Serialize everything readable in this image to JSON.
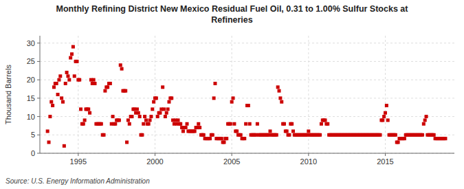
{
  "chart_data": {
    "type": "scatter",
    "title": "Monthly Refining District New Mexico Residual Fuel Oil, 0.31 to 1.00% Sulfur Stocks at\nRefineries",
    "y_label": "Thousand Barrels",
    "source": "Source: U.S. Energy Information Administration",
    "color": "#cc0000",
    "marker": "square",
    "grid": true,
    "xlim": [
      1992.5,
      2019.5
    ],
    "xticks": [
      1995,
      2000,
      2005,
      2010,
      2015
    ],
    "ylim": [
      0,
      32
    ],
    "yticks": [
      0,
      5,
      10,
      15,
      20,
      25,
      30
    ],
    "x": [
      1993,
      1993.0833333333,
      1993.1666666667,
      1993.25,
      1993.3333333333,
      1993.4166666667,
      1993.5,
      1993.5833333333,
      1993.6666666667,
      1993.75,
      1993.8333333333,
      1993.9166666667,
      1994,
      1994.0833333333,
      1994.1666666667,
      1994.25,
      1994.3333333333,
      1994.4166666667,
      1994.5,
      1994.5833333333,
      1994.6666666667,
      1994.75,
      1994.8333333333,
      1994.9166666667,
      1995,
      1995.0833333333,
      1995.1666666667,
      1995.25,
      1995.3333333333,
      1995.4166666667,
      1995.5,
      1995.5833333333,
      1995.6666666667,
      1995.75,
      1995.8333333333,
      1995.9166666667,
      1996,
      1996.0833333333,
      1996.1666666667,
      1996.25,
      1996.3333333333,
      1996.4166666667,
      1996.5,
      1996.5833333333,
      1996.6666666667,
      1996.75,
      1996.8333333333,
      1996.9166666667,
      1997,
      1997.0833333333,
      1997.1666666667,
      1997.25,
      1997.3333333333,
      1997.4166666667,
      1997.5,
      1997.5833333333,
      1997.6666666667,
      1997.75,
      1997.8333333333,
      1997.9166666667,
      1998,
      1998.0833333333,
      1998.1666666667,
      1998.25,
      1998.3333333333,
      1998.4166666667,
      1998.5,
      1998.5833333333,
      1998.6666666667,
      1998.75,
      1998.8333333333,
      1998.9166666667,
      1999,
      1999.0833333333,
      1999.1666666667,
      1999.25,
      1999.3333333333,
      1999.4166666667,
      1999.5,
      1999.5833333333,
      1999.6666666667,
      1999.75,
      1999.8333333333,
      1999.9166666667,
      2000,
      2000.0833333333,
      2000.1666666667,
      2000.25,
      2000.3333333333,
      2000.4166666667,
      2000.5,
      2000.5833333333,
      2000.6666666667,
      2000.75,
      2000.8333333333,
      2000.9166666667,
      2001,
      2001.0833333333,
      2001.1666666667,
      2001.25,
      2001.3333333333,
      2001.4166666667,
      2001.5,
      2001.5833333333,
      2001.6666666667,
      2001.75,
      2001.8333333333,
      2001.9166666667,
      2002,
      2002.0833333333,
      2002.1666666667,
      2002.25,
      2002.3333333333,
      2002.4166666667,
      2002.5,
      2002.5833333333,
      2002.6666666667,
      2002.75,
      2002.8333333333,
      2002.9166666667,
      2003,
      2003.0833333333,
      2003.1666666667,
      2003.25,
      2003.3333333333,
      2003.4166666667,
      2003.5,
      2003.5833333333,
      2003.6666666667,
      2003.75,
      2003.8333333333,
      2003.9166666667,
      2004,
      2004.0833333333,
      2004.1666666667,
      2004.25,
      2004.3333333333,
      2004.4166666667,
      2004.5,
      2004.5833333333,
      2004.6666666667,
      2004.75,
      2004.8333333333,
      2004.9166666667,
      2005,
      2005.0833333333,
      2005.1666666667,
      2005.25,
      2005.3333333333,
      2005.4166666667,
      2005.5,
      2005.5833333333,
      2005.6666666667,
      2005.75,
      2005.8333333333,
      2005.9166666667,
      2006,
      2006.0833333333,
      2006.1666666667,
      2006.25,
      2006.3333333333,
      2006.4166666667,
      2006.5,
      2006.5833333333,
      2006.6666666667,
      2006.75,
      2006.8333333333,
      2006.9166666667,
      2007,
      2007.0833333333,
      2007.1666666667,
      2007.25,
      2007.3333333333,
      2007.4166666667,
      2007.5,
      2007.5833333333,
      2007.6666666667,
      2007.75,
      2007.8333333333,
      2007.9166666667,
      2008,
      2008.0833333333,
      2008.1666666667,
      2008.25,
      2008.3333333333,
      2008.4166666667,
      2008.5,
      2008.5833333333,
      2008.6666666667,
      2008.75,
      2008.8333333333,
      2008.9166666667,
      2009,
      2009.0833333333,
      2009.1666666667,
      2009.25,
      2009.3333333333,
      2009.4166666667,
      2009.5,
      2009.5833333333,
      2009.6666666667,
      2009.75,
      2009.8333333333,
      2009.9166666667,
      2010,
      2010.0833333333,
      2010.1666666667,
      2010.25,
      2010.3333333333,
      2010.4166666667,
      2010.5,
      2010.5833333333,
      2010.6666666667,
      2010.75,
      2010.8333333333,
      2010.9166666667,
      2011,
      2011.0833333333,
      2011.1666666667,
      2011.25,
      2011.3333333333,
      2011.4166666667,
      2011.5,
      2011.5833333333,
      2011.6666666667,
      2011.75,
      2011.8333333333,
      2011.9166666667,
      2012,
      2012.0833333333,
      2012.1666666667,
      2012.25,
      2012.3333333333,
      2012.4166666667,
      2012.5,
      2012.5833333333,
      2012.6666666667,
      2012.75,
      2012.8333333333,
      2012.9166666667,
      2013,
      2013.0833333333,
      2013.1666666667,
      2013.25,
      2013.3333333333,
      2013.4166666667,
      2013.5,
      2013.5833333333,
      2013.6666666667,
      2013.75,
      2013.8333333333,
      2013.9166666667,
      2014,
      2014.0833333333,
      2014.1666666667,
      2014.25,
      2014.3333333333,
      2014.4166666667,
      2014.5,
      2014.5833333333,
      2014.6666666667,
      2014.75,
      2014.8333333333,
      2014.9166666667,
      2015,
      2015.0833333333,
      2015.1666666667,
      2015.25,
      2015.3333333333,
      2015.4166666667,
      2015.5,
      2015.5833333333,
      2015.6666666667,
      2015.75,
      2015.8333333333,
      2015.9166666667,
      2016,
      2016.0833333333,
      2016.1666666667,
      2016.25,
      2016.3333333333,
      2016.4166666667,
      2016.5,
      2016.5833333333,
      2016.6666666667,
      2016.75,
      2016.8333333333,
      2016.9166666667,
      2017,
      2017.0833333333,
      2017.1666666667,
      2017.25,
      2017.3333333333,
      2017.4166666667,
      2017.5,
      2017.5833333333,
      2017.6666666667,
      2017.75,
      2017.8333333333,
      2017.9166666667,
      2018,
      2018.0833333333,
      2018.1666666667,
      2018.25,
      2018.3333333333,
      2018.4166666667,
      2018.5,
      2018.5833333333,
      2018.6666666667,
      2018.75,
      2018.8333333333,
      2018.9166666667
    ],
    "values": [
      6,
      3,
      10,
      14,
      13,
      18,
      19,
      19,
      16,
      20,
      21,
      15,
      14,
      2,
      19,
      22,
      21,
      20,
      26,
      27,
      29,
      21,
      25,
      25,
      20,
      20,
      12,
      8,
      8,
      9,
      12,
      12,
      12,
      11,
      20,
      19,
      20,
      19,
      8,
      8,
      8,
      8,
      8,
      5,
      5,
      17,
      18,
      18,
      19,
      19,
      8,
      10,
      8,
      8,
      9,
      9,
      9,
      24,
      23,
      17,
      17,
      17,
      3,
      9,
      8,
      10,
      10,
      12,
      12,
      11,
      12,
      11,
      10,
      5,
      5,
      8,
      10,
      9,
      8,
      8,
      9,
      10,
      12,
      14,
      15,
      15,
      10,
      11,
      11,
      12,
      18,
      12,
      10,
      11,
      12,
      14,
      15,
      15,
      9,
      8,
      9,
      8,
      9,
      8,
      8,
      7,
      6,
      7,
      7,
      8,
      6,
      6,
      6,
      6,
      6,
      6,
      7,
      7,
      8,
      7,
      5,
      5,
      5,
      4,
      4,
      4,
      4,
      4,
      5,
      5,
      15,
      19,
      4,
      4,
      4,
      4,
      4,
      3,
      3,
      4,
      4,
      8,
      8,
      8,
      14,
      15,
      8,
      6,
      6,
      5,
      5,
      5,
      4,
      4,
      4,
      8,
      13,
      13,
      8,
      5,
      5,
      5,
      5,
      5,
      8,
      5,
      5,
      5,
      5,
      5,
      5,
      5,
      5,
      5,
      6,
      5,
      5,
      5,
      5,
      5,
      18,
      17,
      15,
      14,
      8,
      8,
      6,
      6,
      5,
      5,
      8,
      8,
      6,
      5,
      5,
      5,
      5,
      5,
      5,
      5,
      5,
      5,
      5,
      5,
      6,
      5,
      5,
      5,
      5,
      5,
      5,
      5,
      5,
      5,
      8,
      9,
      9,
      9,
      8,
      8,
      5,
      5,
      5,
      5,
      5,
      5,
      5,
      5,
      5,
      5,
      5,
      5,
      5,
      5,
      5,
      5,
      5,
      5,
      5,
      5,
      5,
      5,
      5,
      5,
      5,
      5,
      5,
      5,
      5,
      5,
      5,
      5,
      5,
      5,
      5,
      5,
      5,
      5,
      5,
      5,
      5,
      9,
      9,
      10,
      11,
      13,
      9,
      5,
      5,
      5,
      5,
      5,
      5,
      3,
      3,
      4,
      4,
      4,
      4,
      4,
      5,
      5,
      5,
      5,
      5,
      5,
      5,
      5,
      5,
      5,
      5,
      5,
      5,
      5,
      8,
      9,
      10,
      5,
      5,
      5,
      5,
      5,
      5,
      4,
      4,
      4,
      4,
      4,
      4,
      4,
      4,
      4
    ]
  }
}
